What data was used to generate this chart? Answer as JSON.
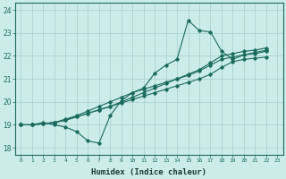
{
  "xlabel": "Humidex (Indice chaleur)",
  "bg_color": "#ccecea",
  "grid_color": "#aad4d2",
  "line_color": "#1a6b5e",
  "xlim": [
    -0.5,
    23.5
  ],
  "ylim": [
    17.7,
    24.3
  ],
  "yticks": [
    18,
    19,
    20,
    21,
    22,
    23,
    24
  ],
  "xticks": [
    0,
    1,
    2,
    3,
    4,
    5,
    6,
    7,
    8,
    9,
    10,
    11,
    12,
    13,
    14,
    15,
    16,
    17,
    18,
    19,
    20,
    21,
    22,
    23
  ],
  "series": {
    "jagged": [
      19.0,
      19.0,
      19.1,
      19.0,
      18.9,
      18.7,
      18.3,
      18.2,
      19.4,
      20.05,
      20.4,
      20.6,
      21.25,
      21.6,
      21.85,
      23.55,
      23.1,
      23.05,
      22.2,
      21.85,
      22.05,
      22.15,
      22.25
    ],
    "linear1": [
      19.0,
      19.0,
      19.05,
      19.1,
      19.2,
      19.35,
      19.5,
      19.65,
      19.8,
      19.95,
      20.1,
      20.25,
      20.4,
      20.55,
      20.7,
      20.85,
      21.0,
      21.2,
      21.5,
      21.75,
      21.85,
      21.9,
      21.95
    ],
    "linear2": [
      19.0,
      19.0,
      19.05,
      19.1,
      19.25,
      19.4,
      19.6,
      19.8,
      20.0,
      20.2,
      20.4,
      20.55,
      20.7,
      20.85,
      21.0,
      21.15,
      21.35,
      21.6,
      21.85,
      21.95,
      22.05,
      22.1,
      22.2
    ],
    "linear3": [
      19.0,
      19.0,
      19.05,
      19.1,
      19.2,
      19.35,
      19.5,
      19.65,
      19.8,
      20.0,
      20.2,
      20.4,
      20.6,
      20.8,
      21.0,
      21.2,
      21.4,
      21.7,
      22.0,
      22.1,
      22.2,
      22.25,
      22.35
    ]
  }
}
